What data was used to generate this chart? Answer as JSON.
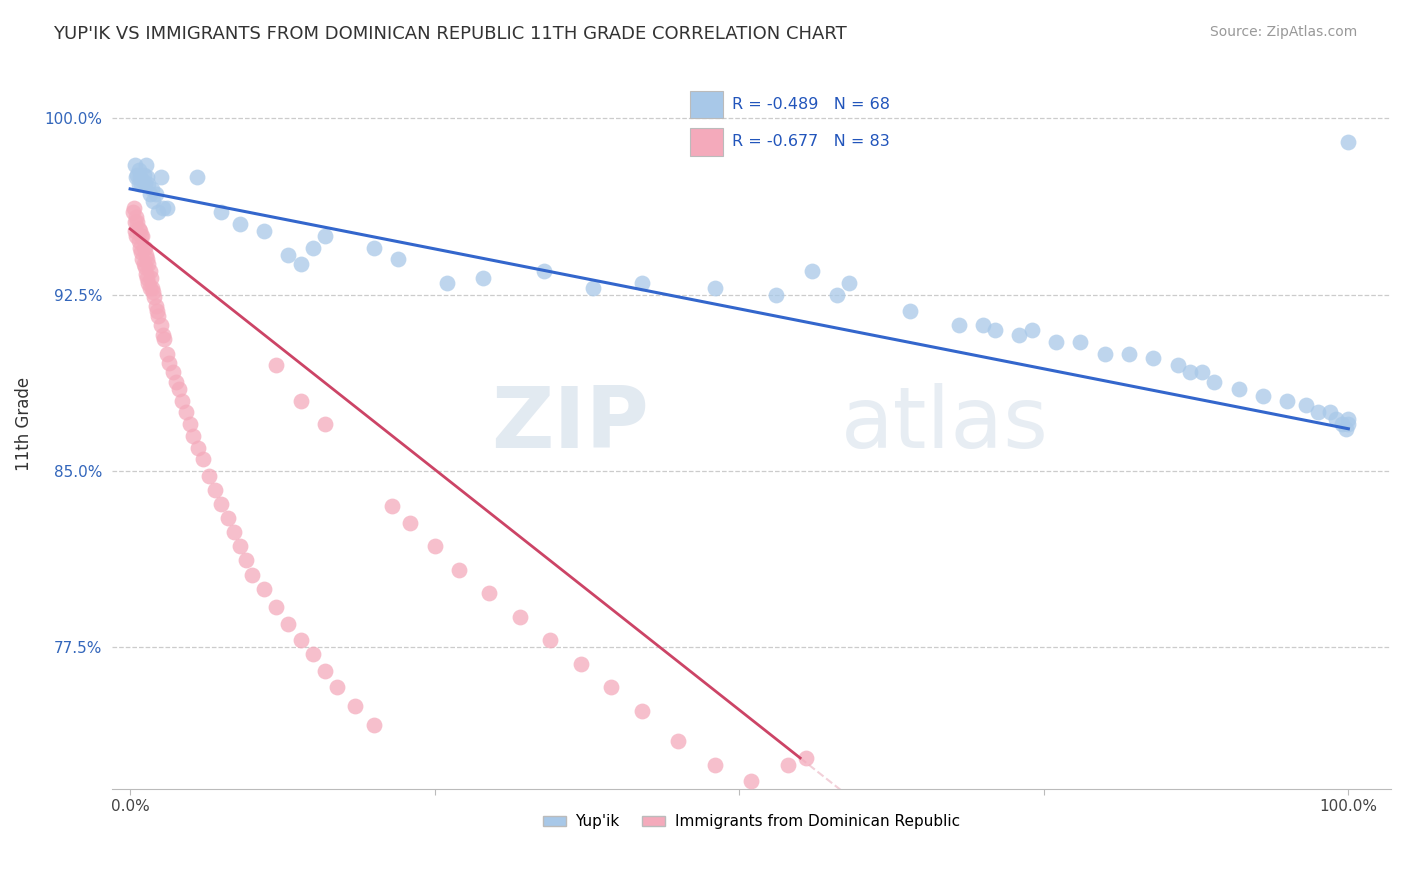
{
  "title": "YUP'IK VS IMMIGRANTS FROM DOMINICAN REPUBLIC 11TH GRADE CORRELATION CHART",
  "source": "Source: ZipAtlas.com",
  "ylabel": "11th Grade",
  "blue_r": "-0.489",
  "blue_n": "68",
  "pink_r": "-0.677",
  "pink_n": "83",
  "blue_color": "#a8c8e8",
  "pink_color": "#f4aabb",
  "blue_line_color": "#3366cc",
  "pink_line_color": "#cc4466",
  "watermark_zip": "ZIP",
  "watermark_atlas": "atlas",
  "legend_label_blue": "Yup'ik",
  "legend_label_pink": "Immigrants from Dominican Republic",
  "ymin": 0.715,
  "ymax": 1.025,
  "xmin": -0.015,
  "xmax": 1.035,
  "ytick_positions": [
    0.775,
    0.85,
    0.925,
    1.0
  ],
  "ytick_labels": [
    "77.5%",
    "85.0%",
    "92.5%",
    "100.0%"
  ],
  "blue_trend_x0": 0.0,
  "blue_trend_y0": 0.97,
  "blue_trend_x1": 1.0,
  "blue_trend_y1": 0.868,
  "pink_trend_x0": 0.0,
  "pink_trend_y0": 0.953,
  "pink_trend_x1": 0.55,
  "pink_trend_y1": 0.728,
  "blue_scatter_x": [
    0.004,
    0.005,
    0.006,
    0.007,
    0.007,
    0.008,
    0.009,
    0.01,
    0.011,
    0.012,
    0.013,
    0.014,
    0.015,
    0.016,
    0.018,
    0.019,
    0.021,
    0.023,
    0.025,
    0.027,
    0.03,
    0.055,
    0.075,
    0.09,
    0.11,
    0.13,
    0.14,
    0.15,
    0.16,
    0.2,
    0.22,
    0.26,
    0.29,
    0.34,
    0.38,
    0.42,
    0.48,
    0.53,
    0.56,
    0.58,
    0.59,
    0.64,
    0.68,
    0.7,
    0.71,
    0.73,
    0.74,
    0.76,
    0.78,
    0.8,
    0.82,
    0.84,
    0.86,
    0.87,
    0.88,
    0.89,
    0.91,
    0.93,
    0.95,
    0.965,
    0.975,
    0.985,
    0.99,
    0.995,
    0.998,
    1.0,
    1.0,
    1.0
  ],
  "blue_scatter_y": [
    0.98,
    0.975,
    0.976,
    0.972,
    0.978,
    0.975,
    0.972,
    0.974,
    0.976,
    0.972,
    0.98,
    0.975,
    0.972,
    0.968,
    0.97,
    0.965,
    0.968,
    0.96,
    0.975,
    0.962,
    0.962,
    0.975,
    0.96,
    0.955,
    0.952,
    0.942,
    0.938,
    0.945,
    0.95,
    0.945,
    0.94,
    0.93,
    0.932,
    0.935,
    0.928,
    0.93,
    0.928,
    0.925,
    0.935,
    0.925,
    0.93,
    0.918,
    0.912,
    0.912,
    0.91,
    0.908,
    0.91,
    0.905,
    0.905,
    0.9,
    0.9,
    0.898,
    0.895,
    0.892,
    0.892,
    0.888,
    0.885,
    0.882,
    0.88,
    0.878,
    0.875,
    0.875,
    0.872,
    0.87,
    0.868,
    0.87,
    0.872,
    0.99
  ],
  "pink_scatter_x": [
    0.002,
    0.003,
    0.004,
    0.004,
    0.005,
    0.005,
    0.006,
    0.007,
    0.007,
    0.008,
    0.008,
    0.009,
    0.009,
    0.01,
    0.01,
    0.011,
    0.011,
    0.012,
    0.012,
    0.013,
    0.013,
    0.014,
    0.014,
    0.015,
    0.015,
    0.016,
    0.016,
    0.017,
    0.018,
    0.019,
    0.02,
    0.021,
    0.022,
    0.023,
    0.025,
    0.027,
    0.028,
    0.03,
    0.032,
    0.035,
    0.038,
    0.04,
    0.043,
    0.046,
    0.049,
    0.052,
    0.056,
    0.06,
    0.065,
    0.07,
    0.075,
    0.08,
    0.085,
    0.09,
    0.095,
    0.1,
    0.11,
    0.12,
    0.13,
    0.14,
    0.15,
    0.16,
    0.17,
    0.185,
    0.2,
    0.215,
    0.23,
    0.25,
    0.27,
    0.295,
    0.32,
    0.345,
    0.37,
    0.395,
    0.42,
    0.45,
    0.48,
    0.51,
    0.54,
    0.555,
    0.16,
    0.14,
    0.12
  ],
  "pink_scatter_y": [
    0.96,
    0.962,
    0.956,
    0.952,
    0.958,
    0.95,
    0.956,
    0.953,
    0.948,
    0.952,
    0.945,
    0.95,
    0.943,
    0.95,
    0.94,
    0.945,
    0.938,
    0.945,
    0.937,
    0.942,
    0.934,
    0.94,
    0.932,
    0.938,
    0.93,
    0.935,
    0.928,
    0.932,
    0.928,
    0.926,
    0.924,
    0.92,
    0.918,
    0.916,
    0.912,
    0.908,
    0.906,
    0.9,
    0.896,
    0.892,
    0.888,
    0.885,
    0.88,
    0.875,
    0.87,
    0.865,
    0.86,
    0.855,
    0.848,
    0.842,
    0.836,
    0.83,
    0.824,
    0.818,
    0.812,
    0.806,
    0.8,
    0.792,
    0.785,
    0.778,
    0.772,
    0.765,
    0.758,
    0.75,
    0.742,
    0.835,
    0.828,
    0.818,
    0.808,
    0.798,
    0.788,
    0.778,
    0.768,
    0.758,
    0.748,
    0.735,
    0.725,
    0.718,
    0.725,
    0.728,
    0.87,
    0.88,
    0.895
  ]
}
